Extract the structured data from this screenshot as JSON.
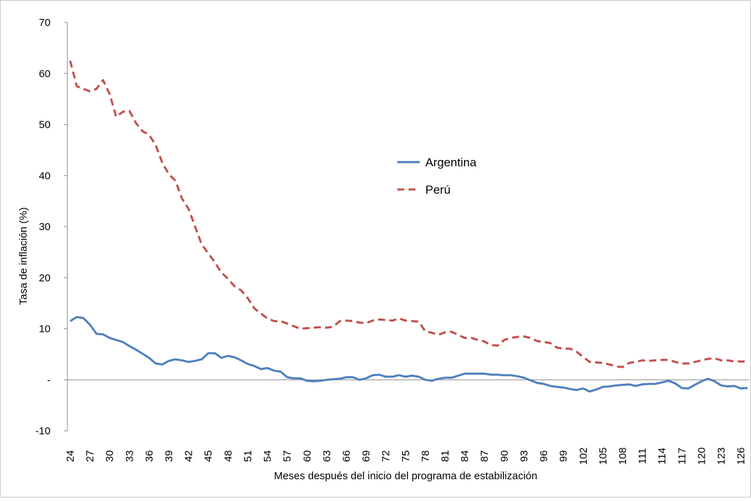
{
  "chart_data": {
    "type": "line",
    "title": "",
    "xlabel": "Meses después del inicio del programa de estabilización",
    "ylabel": "Tasa de inflación (%)",
    "ylim": [
      -10,
      70
    ],
    "yticks": [
      70,
      60,
      50,
      40,
      30,
      20,
      10,
      0,
      -10
    ],
    "ytick_labels": [
      "70",
      "60",
      "50",
      "40",
      "30",
      "20",
      "10",
      "-",
      "-10"
    ],
    "xlim": [
      24,
      127
    ],
    "xticks": [
      24,
      27,
      30,
      33,
      36,
      39,
      42,
      45,
      48,
      51,
      54,
      57,
      60,
      63,
      66,
      69,
      72,
      75,
      78,
      81,
      84,
      87,
      90,
      93,
      96,
      99,
      102,
      105,
      108,
      111,
      114,
      117,
      120,
      123,
      126
    ],
    "grid": false,
    "legend": "center-right",
    "series": [
      {
        "name": "Argentina",
        "color": "#4f81bd",
        "style": "solid",
        "x": [
          24,
          25,
          26,
          27,
          28,
          29,
          30,
          31,
          32,
          33,
          34,
          35,
          36,
          37,
          38,
          39,
          40,
          41,
          42,
          43,
          44,
          45,
          46,
          47,
          48,
          49,
          50,
          51,
          52,
          53,
          54,
          55,
          56,
          57,
          58,
          59,
          60,
          61,
          62,
          63,
          64,
          65,
          66,
          67,
          68,
          69,
          70,
          71,
          72,
          73,
          74,
          75,
          76,
          77,
          78,
          79,
          80,
          81,
          82,
          83,
          84,
          85,
          86,
          87,
          88,
          89,
          90,
          91,
          92,
          93,
          94,
          95,
          96,
          97,
          98,
          99,
          100,
          101,
          102,
          103,
          104,
          105,
          106,
          107,
          108,
          109,
          110,
          111,
          112,
          113,
          114,
          115,
          116,
          117,
          118,
          119,
          120,
          121,
          122,
          123,
          124,
          125,
          126,
          127
        ],
        "values": [
          11.5,
          12.3,
          12.1,
          10.8,
          9.0,
          8.9,
          8.2,
          7.8,
          7.4,
          6.6,
          5.9,
          5.1,
          4.3,
          3.2,
          3.0,
          3.7,
          4.0,
          3.8,
          3.5,
          3.7,
          4.0,
          5.2,
          5.2,
          4.3,
          4.7,
          4.4,
          3.8,
          3.1,
          2.7,
          2.1,
          2.3,
          1.8,
          1.6,
          0.5,
          0.3,
          0.3,
          -0.2,
          -0.3,
          -0.2,
          0.0,
          0.1,
          0.2,
          0.5,
          0.5,
          0.0,
          0.3,
          0.9,
          1.0,
          0.6,
          0.6,
          0.9,
          0.6,
          0.8,
          0.6,
          0.0,
          -0.2,
          0.2,
          0.4,
          0.4,
          0.8,
          1.2,
          1.2,
          1.2,
          1.2,
          1.0,
          1.0,
          0.9,
          0.9,
          0.7,
          0.4,
          -0.1,
          -0.6,
          -0.8,
          -1.2,
          -1.4,
          -1.5,
          -1.8,
          -2.0,
          -1.7,
          -2.3,
          -1.9,
          -1.4,
          -1.3,
          -1.1,
          -1.0,
          -0.9,
          -1.2,
          -0.9,
          -0.8,
          -0.8,
          -0.5,
          -0.2,
          -0.7,
          -1.6,
          -1.7,
          -1.0,
          -0.3,
          0.2,
          -0.3,
          -1.1,
          -1.3,
          -1.2,
          -1.7,
          -1.6
        ]
      },
      {
        "name": "Perú",
        "color": "#c0504d",
        "style": "dashed",
        "x": [
          24,
          25,
          26,
          27,
          28,
          29,
          30,
          31,
          32,
          33,
          34,
          35,
          36,
          37,
          38,
          39,
          40,
          41,
          42,
          43,
          44,
          45,
          46,
          47,
          48,
          49,
          50,
          51,
          52,
          53,
          54,
          55,
          56,
          57,
          58,
          59,
          60,
          61,
          62,
          63,
          64,
          65,
          66,
          67,
          68,
          69,
          70,
          71,
          72,
          73,
          74,
          75,
          76,
          77,
          78,
          79,
          80,
          81,
          82,
          83,
          84,
          85,
          86,
          87,
          88,
          89,
          90,
          91,
          92,
          93,
          94,
          95,
          96,
          97,
          98,
          99,
          100,
          101,
          102,
          103,
          104,
          105,
          106,
          107,
          108,
          109,
          110,
          111,
          112,
          113,
          114,
          115,
          116,
          117,
          118,
          119,
          120,
          121,
          122,
          123,
          124,
          125,
          126,
          127
        ],
        "values": [
          62.5,
          57.5,
          57.0,
          56.5,
          57.0,
          58.7,
          56.0,
          51.5,
          52.5,
          52.7,
          50.3,
          48.7,
          48.0,
          46.0,
          42.5,
          40.3,
          39.0,
          35.5,
          33.5,
          30.0,
          26.5,
          24.8,
          23.0,
          21.0,
          19.8,
          18.3,
          17.5,
          16.0,
          14.0,
          13.0,
          12.0,
          11.5,
          11.5,
          11.0,
          10.5,
          10.0,
          10.1,
          10.2,
          10.3,
          10.2,
          10.4,
          11.5,
          11.6,
          11.5,
          11.2,
          11.1,
          11.6,
          11.8,
          11.7,
          11.6,
          12.0,
          11.6,
          11.5,
          11.4,
          9.5,
          9.2,
          8.8,
          9.3,
          9.4,
          8.8,
          8.2,
          8.2,
          7.8,
          7.5,
          6.8,
          6.7,
          7.8,
          8.2,
          8.4,
          8.5,
          8.2,
          7.6,
          7.4,
          7.2,
          6.3,
          6.1,
          6.1,
          5.5,
          4.5,
          3.5,
          3.4,
          3.3,
          3.0,
          2.6,
          2.5,
          3.3,
          3.5,
          3.8,
          3.7,
          3.8,
          3.9,
          3.9,
          3.5,
          3.2,
          3.2,
          3.5,
          3.8,
          4.1,
          4.2,
          3.8,
          3.8,
          3.6,
          3.6,
          3.6
        ]
      }
    ]
  }
}
